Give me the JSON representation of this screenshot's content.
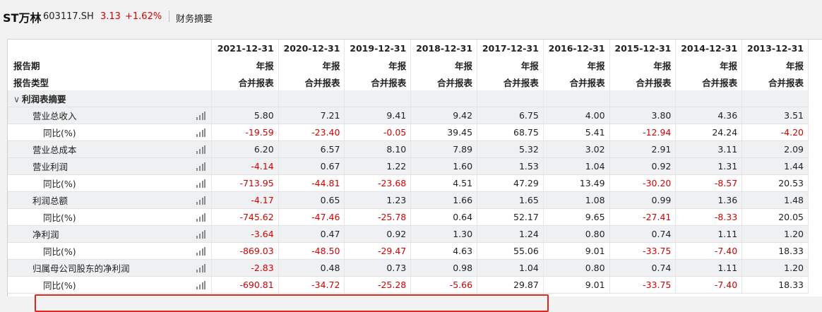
{
  "header": {
    "stock_name": "ST万林",
    "stock_code": "603117.SH",
    "price": "3.13",
    "change": "+1.62%",
    "tab": "财务摘要"
  },
  "columns": {
    "dates": [
      "2021-12-31",
      "2020-12-31",
      "2019-12-31",
      "2018-12-31",
      "2017-12-31",
      "2016-12-31",
      "2015-12-31",
      "2014-12-31",
      "2013-12-31"
    ],
    "periods": [
      "年报",
      "年报",
      "年报",
      "年报",
      "年报",
      "年报",
      "年报",
      "年报",
      "年报"
    ],
    "types": [
      "合并报表",
      "合并报表",
      "合并报表",
      "合并报表",
      "合并报表",
      "合并报表",
      "合并报表",
      "合并报表",
      "合并报表"
    ]
  },
  "labels": {
    "period": "报告期",
    "type": "报告类型",
    "section": "利润表摘要"
  },
  "rows": [
    {
      "label": "营业总收入",
      "values": [
        "5.80",
        "7.21",
        "9.41",
        "9.42",
        "6.75",
        "4.00",
        "3.80",
        "4.36",
        "3.51"
      ]
    },
    {
      "label": "同比(%)",
      "values": [
        "-19.59",
        "-23.40",
        "-0.05",
        "39.45",
        "68.75",
        "5.41",
        "-12.94",
        "24.24",
        "-4.20"
      ]
    },
    {
      "label": "营业总成本",
      "values": [
        "6.20",
        "6.57",
        "8.10",
        "7.89",
        "5.32",
        "3.02",
        "2.91",
        "3.11",
        "2.09"
      ]
    },
    {
      "label": "营业利润",
      "values": [
        "-4.14",
        "0.67",
        "1.22",
        "1.60",
        "1.53",
        "1.04",
        "0.92",
        "1.31",
        "1.44"
      ]
    },
    {
      "label": "同比(%)",
      "values": [
        "-713.95",
        "-44.81",
        "-23.68",
        "4.51",
        "47.29",
        "13.49",
        "-30.20",
        "-8.57",
        "20.53"
      ]
    },
    {
      "label": "利润总额",
      "values": [
        "-4.17",
        "0.65",
        "1.23",
        "1.66",
        "1.65",
        "1.08",
        "0.99",
        "1.36",
        "1.48"
      ]
    },
    {
      "label": "同比(%)",
      "values": [
        "-745.62",
        "-47.46",
        "-25.78",
        "0.64",
        "52.17",
        "9.65",
        "-27.41",
        "-8.33",
        "20.05"
      ]
    },
    {
      "label": "净利润",
      "values": [
        "-3.64",
        "0.47",
        "0.92",
        "1.30",
        "1.24",
        "0.80",
        "0.74",
        "1.11",
        "1.20"
      ]
    },
    {
      "label": "同比(%)",
      "values": [
        "-869.03",
        "-48.50",
        "-29.47",
        "4.63",
        "55.06",
        "9.01",
        "-33.75",
        "-7.40",
        "18.33"
      ]
    },
    {
      "label": "归属母公司股东的净利润",
      "values": [
        "-2.83",
        "0.48",
        "0.73",
        "0.98",
        "1.04",
        "0.80",
        "0.74",
        "1.11",
        "1.20"
      ]
    },
    {
      "label": "同比(%)",
      "values": [
        "-690.81",
        "-34.72",
        "-25.28",
        "-5.66",
        "29.87",
        "9.01",
        "-33.75",
        "-7.40",
        "18.33"
      ]
    }
  ],
  "colors": {
    "negative": "#d60000",
    "highlight": "#e0261d"
  }
}
